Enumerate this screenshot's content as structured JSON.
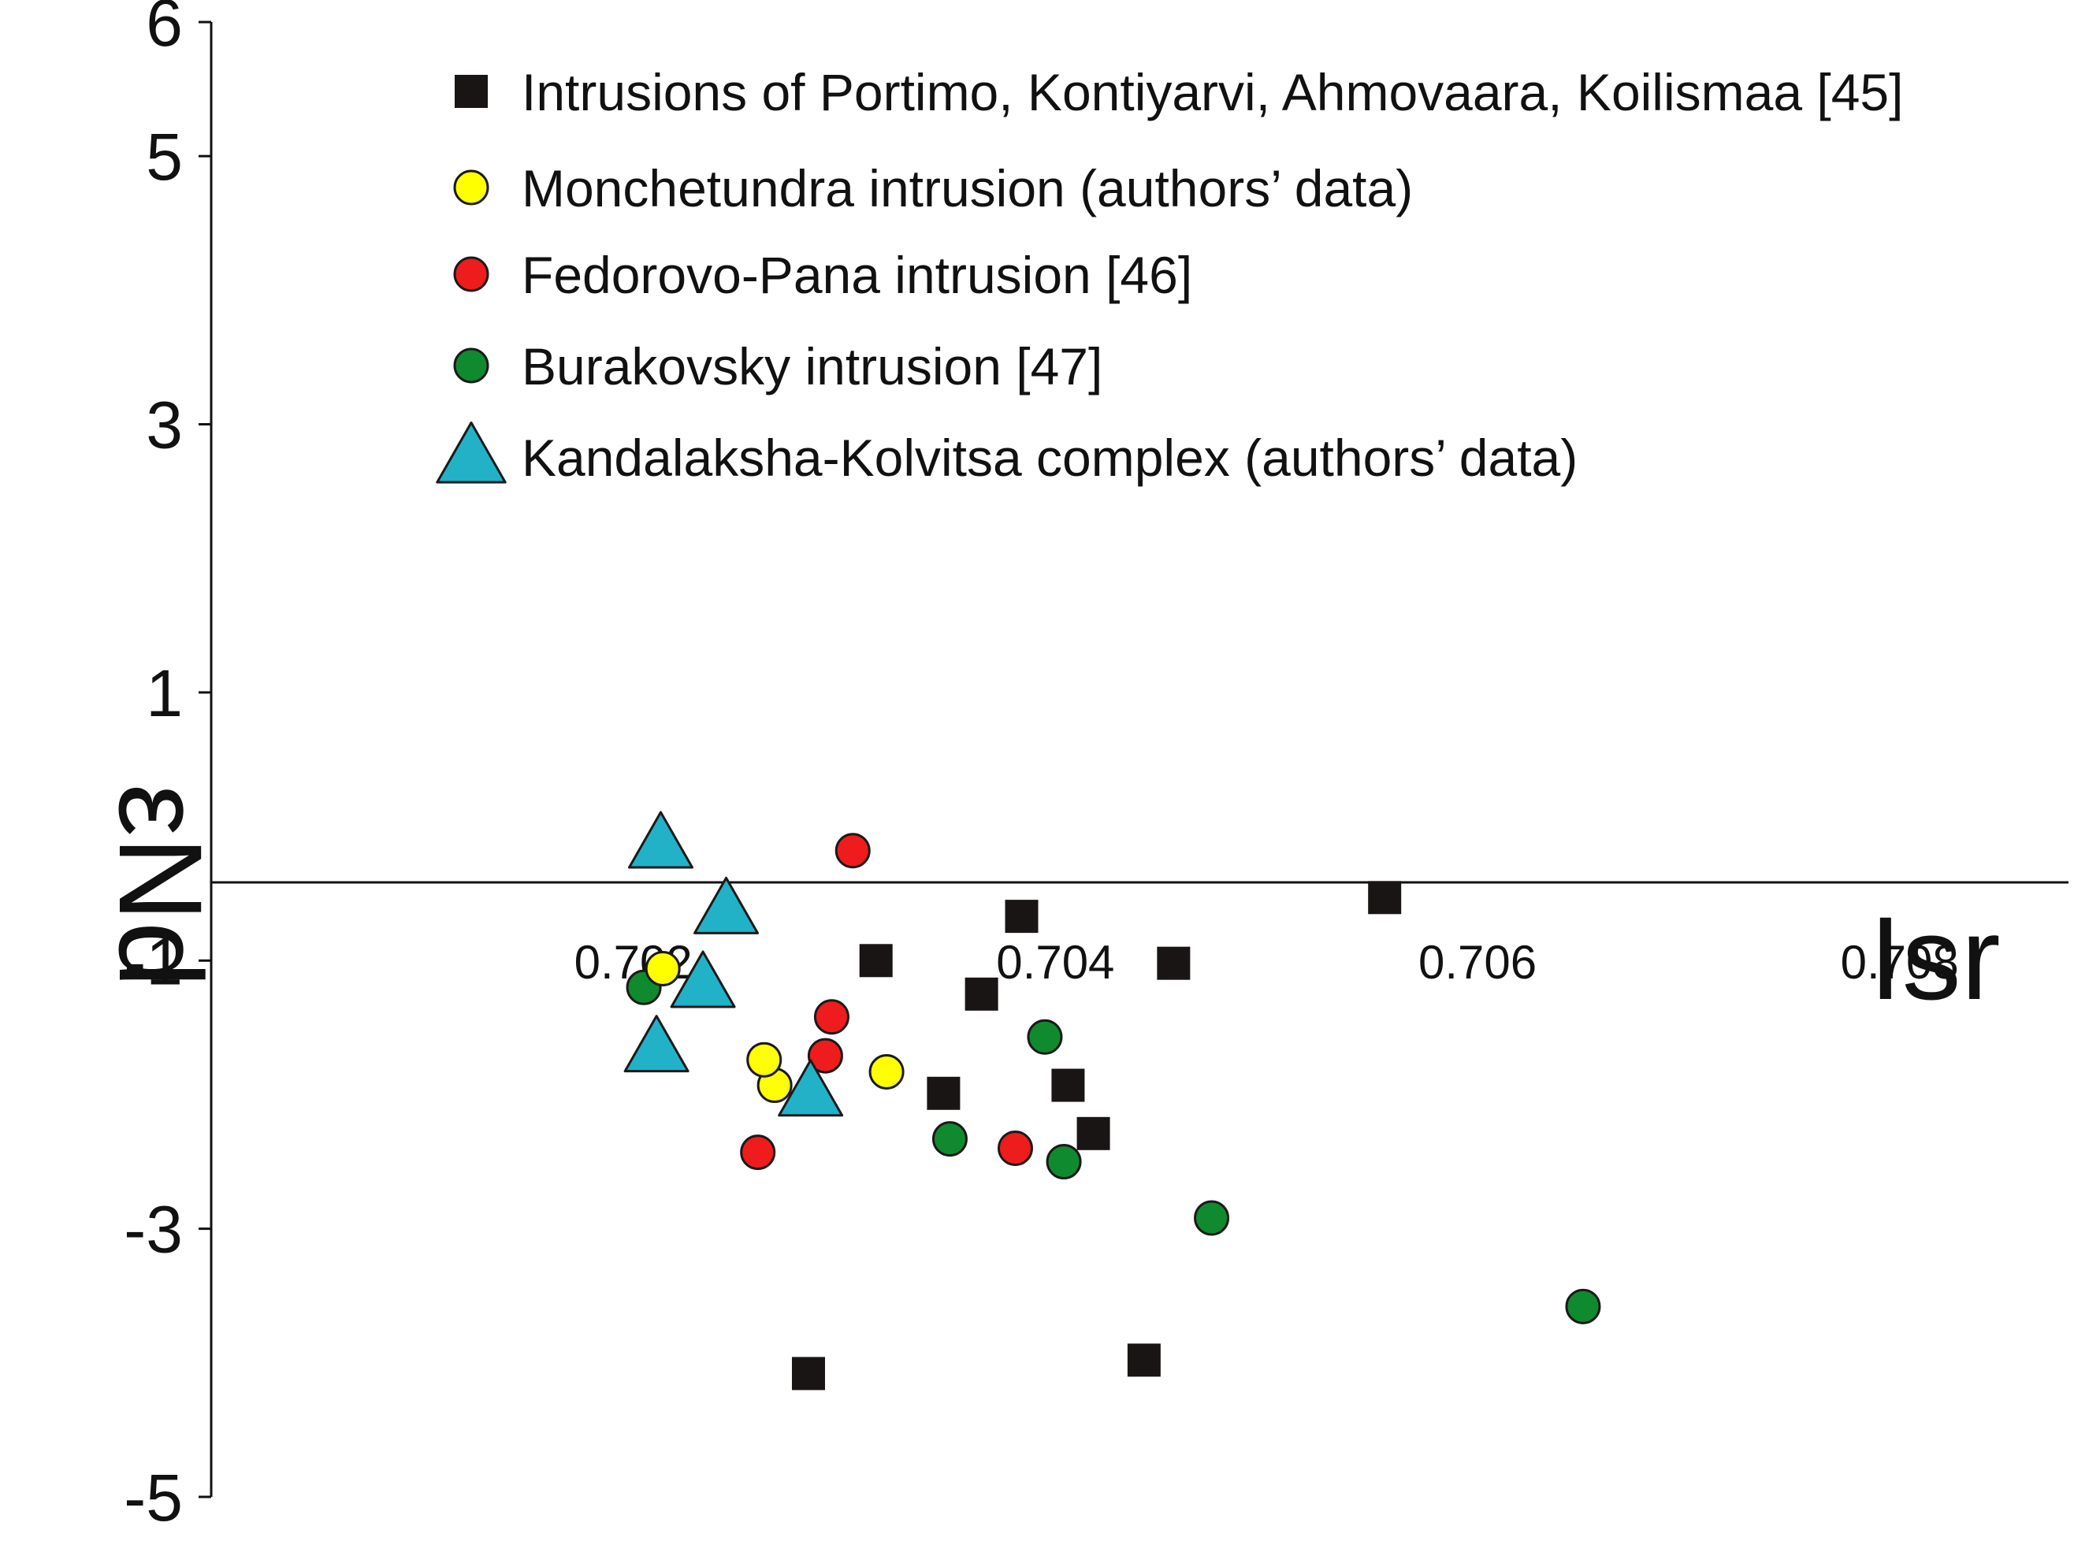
{
  "chart_data": {
    "type": "scatter",
    "xlabel": "Isr",
    "ylabel": "εNd",
    "xlim": [
      0.7,
      0.7088
    ],
    "ylim": [
      -5,
      6
    ],
    "x_ticks": [
      {
        "value": 0.702,
        "label": "0.702"
      },
      {
        "value": 0.704,
        "label": "0.704"
      },
      {
        "value": 0.706,
        "label": "0.706"
      },
      {
        "value": 0.708,
        "label": "0.708"
      }
    ],
    "y_ticks": [
      {
        "value": 6,
        "label": "6"
      },
      {
        "value": 5,
        "label": "5"
      },
      {
        "value": 3,
        "label": "3"
      },
      {
        "value": 1,
        "label": "1"
      },
      {
        "value": -1,
        "label": "-1"
      },
      {
        "value": -3,
        "label": "-3"
      },
      {
        "value": -5,
        "label": "-5"
      }
    ],
    "grid": false,
    "legend_position": "top",
    "series": [
      {
        "name": "Intrusions of Portimo, Kontiyarvi, Ahmovaara, Koilismaa [45]",
        "marker": "square",
        "color": "#1a1515",
        "points": [
          {
            "x": 0.70384,
            "y": -0.67
          },
          {
            "x": 0.70315,
            "y": -1.0
          },
          {
            "x": 0.70365,
            "y": -1.25
          },
          {
            "x": 0.70456,
            "y": -1.02
          },
          {
            "x": 0.70556,
            "y": -0.53
          },
          {
            "x": 0.70347,
            "y": -1.99
          },
          {
            "x": 0.70406,
            "y": -1.93
          },
          {
            "x": 0.70418,
            "y": -2.29
          },
          {
            "x": 0.70283,
            "y": -4.08
          },
          {
            "x": 0.70442,
            "y": -3.98
          }
        ]
      },
      {
        "name": "Monchetundra intrusion (authors’ data)",
        "marker": "circle",
        "color": "#ffff00",
        "points": [
          {
            "x": 0.70214,
            "y": -1.06
          },
          {
            "x": 0.70267,
            "y": -1.93
          },
          {
            "x": 0.70262,
            "y": -1.74
          },
          {
            "x": 0.7032,
            "y": -1.83
          }
        ]
      },
      {
        "name": "Fedorovo-Pana intrusion [46]",
        "marker": "circle",
        "color": "#ee1c1c",
        "points": [
          {
            "x": 0.70304,
            "y": -0.18
          },
          {
            "x": 0.70294,
            "y": -1.42
          },
          {
            "x": 0.70291,
            "y": -1.71
          },
          {
            "x": 0.70259,
            "y": -2.43
          },
          {
            "x": 0.70381,
            "y": -2.4
          }
        ]
      },
      {
        "name": "Burakovsky intrusion [47]",
        "marker": "circle",
        "color": "#0f8a2f",
        "points": [
          {
            "x": 0.70205,
            "y": -1.2
          },
          {
            "x": 0.70395,
            "y": -1.57
          },
          {
            "x": 0.7035,
            "y": -2.33
          },
          {
            "x": 0.70404,
            "y": -2.5
          },
          {
            "x": 0.70474,
            "y": -2.92
          },
          {
            "x": 0.7065,
            "y": -3.58
          }
        ]
      },
      {
        "name": "Kandalaksha-Kolvitsa complex (authors’ data)",
        "marker": "triangle",
        "color": "#21b2c8",
        "points": [
          {
            "x": 0.70213,
            "y": -0.13
          },
          {
            "x": 0.70244,
            "y": -0.62
          },
          {
            "x": 0.70233,
            "y": -1.17
          },
          {
            "x": 0.70211,
            "y": -1.65
          },
          {
            "x": 0.70284,
            "y": -1.98
          }
        ]
      }
    ]
  }
}
